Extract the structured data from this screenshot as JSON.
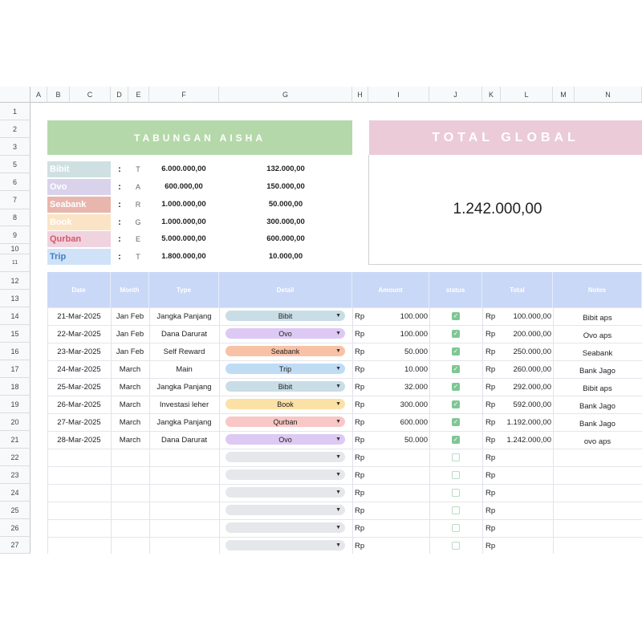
{
  "columns": [
    "A",
    "B",
    "C",
    "D",
    "E",
    "F",
    "G",
    "H",
    "I",
    "J",
    "K",
    "L",
    "M",
    "N"
  ],
  "rows": [
    "1",
    "2",
    "3",
    "5",
    "6",
    "7",
    "8",
    "9",
    "10",
    "11",
    "12",
    "13",
    "14",
    "15",
    "16",
    "17",
    "18",
    "19",
    "20",
    "21",
    "22",
    "23",
    "24",
    "25",
    "26",
    "27"
  ],
  "left_banner": {
    "title": "TABUNGAN AISHA",
    "color": "#b5d8aa"
  },
  "total_global": {
    "title": "TOTAL GLOBAL",
    "value": "1.242.000,00",
    "color": "#ebcbd8"
  },
  "legend": [
    {
      "name": "Bibit",
      "letter": "T",
      "target": "6.000.000,00",
      "current": "132.000,00",
      "bg": "#cfe0e2",
      "fg": "#ffffff"
    },
    {
      "name": "Ovo",
      "letter": "A",
      "target": "600.000,00",
      "current": "150.000,00",
      "bg": "#d9d2eb",
      "fg": "#ffffff"
    },
    {
      "name": "Seabank",
      "letter": "R",
      "target": "1.000.000,00",
      "current": "50.000,00",
      "bg": "#e8b6ad",
      "fg": "#ffffff"
    },
    {
      "name": "Book",
      "letter": "G",
      "target": "1.000.000,00",
      "current": "300.000,00",
      "bg": "#fbe4c5",
      "fg": "#ffffff"
    },
    {
      "name": "Qurban",
      "letter": "E",
      "target": "5.000.000,00",
      "current": "600.000,00",
      "bg": "#efd3de",
      "fg": "#d9566a"
    },
    {
      "name": "Trip",
      "letter": "T",
      "target": "1.800.000,00",
      "current": "10.000,00",
      "bg": "#d0e2f7",
      "fg": "#3d7fc7"
    }
  ],
  "table_headers": [
    "Date",
    "Month",
    "Type",
    "Detail",
    "Amount",
    "status",
    "Total",
    "Notes"
  ],
  "currency": "Rp",
  "transactions": [
    {
      "date": "21-Mar-2025",
      "month": "Jan Feb",
      "type": "Jangka Panjang",
      "detail": "Bibit",
      "amount": "100.000",
      "total": "100.000,00",
      "notes": "Bibit aps",
      "chip_color": "#c8dde6"
    },
    {
      "date": "22-Mar-2025",
      "month": "Jan Feb",
      "type": "Dana Darurat",
      "detail": "Ovo",
      "amount": "100.000",
      "total": "200.000,00",
      "notes": "Ovo aps",
      "chip_color": "#ddc9f3"
    },
    {
      "date": "23-Mar-2025",
      "month": "Jan Feb",
      "type": "Self Reward",
      "detail": "Seabank",
      "amount": "50.000",
      "total": "250.000,00",
      "notes": "Seabank",
      "chip_color": "#f8c2a6"
    },
    {
      "date": "24-Mar-2025",
      "month": "March",
      "type": "Main",
      "detail": "Trip",
      "amount": "10.000",
      "total": "260.000,00",
      "notes": "Bank Jago",
      "chip_color": "#bfdcf4"
    },
    {
      "date": "25-Mar-2025",
      "month": "March",
      "type": "Jangka Panjang",
      "detail": "Bibit",
      "amount": "32.000",
      "total": "292.000,00",
      "notes": "Bibit aps",
      "chip_color": "#c8dde6"
    },
    {
      "date": "26-Mar-2025",
      "month": "March",
      "type": "Investasi leher",
      "detail": "Book",
      "amount": "300.000",
      "total": "592.000,00",
      "notes": "Bank Jago",
      "chip_color": "#fbe1a6"
    },
    {
      "date": "27-Mar-2025",
      "month": "March",
      "type": "Jangka Panjang",
      "detail": "Qurban",
      "amount": "600.000",
      "total": "1.192.000,00",
      "notes": "Bank Jago",
      "chip_color": "#f8c7c6"
    },
    {
      "date": "28-Mar-2025",
      "month": "March",
      "type": "Dana Darurat",
      "detail": "Ovo",
      "amount": "50.000",
      "total": "1.242.000,00",
      "notes": "ovo aps",
      "chip_color": "#ddc9f3"
    }
  ],
  "empty_rows": 6,
  "empty_chip_color": "#e6e7ea",
  "status_color": "#7fc694"
}
